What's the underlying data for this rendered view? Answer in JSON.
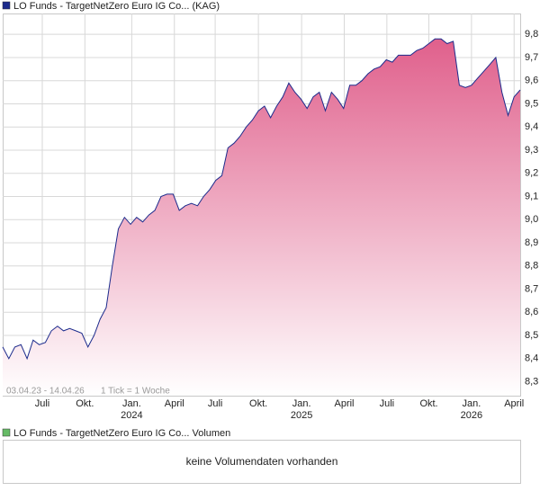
{
  "chart_data": {
    "type": "area-line",
    "legend": "LO Funds - TargetNetZero Euro IG Co... (KAG)",
    "color": "#1c2b8c",
    "fill_color": "#e0608c",
    "range_note": "03.04.23 - 14.04.26",
    "tick_note": "1 Tick = 1 Woche",
    "values": [
      8.45,
      8.4,
      8.45,
      8.46,
      8.4,
      8.48,
      8.46,
      8.47,
      8.52,
      8.54,
      8.52,
      8.53,
      8.52,
      8.51,
      8.45,
      8.5,
      8.57,
      8.62,
      8.8,
      8.96,
      9.01,
      8.98,
      9.01,
      8.99,
      9.02,
      9.04,
      9.1,
      9.11,
      9.11,
      9.04,
      9.06,
      9.07,
      9.06,
      9.1,
      9.13,
      9.17,
      9.19,
      9.31,
      9.33,
      9.36,
      9.4,
      9.43,
      9.47,
      9.49,
      9.44,
      9.49,
      9.53,
      9.59,
      9.55,
      9.52,
      9.48,
      9.53,
      9.55,
      9.47,
      9.55,
      9.52,
      9.48,
      9.58,
      9.58,
      9.6,
      9.63,
      9.65,
      9.66,
      9.69,
      9.68,
      9.71,
      9.71,
      9.71,
      9.73,
      9.74,
      9.76,
      9.78,
      9.78,
      9.76,
      9.77,
      9.58,
      9.57,
      9.58,
      9.61,
      9.64,
      9.67,
      9.7,
      9.55,
      9.45,
      9.53,
      9.56
    ],
    "xlim": [
      0,
      85
    ],
    "xticks": [
      {
        "value": 6.5,
        "label": "Juli"
      },
      {
        "value": 13.5,
        "label": "Okt."
      },
      {
        "value": 21.2,
        "label": "Jan.",
        "year": "2024"
      },
      {
        "value": 28.2,
        "label": "April"
      },
      {
        "value": 34.9,
        "label": "Juli"
      },
      {
        "value": 42,
        "label": "Okt."
      },
      {
        "value": 49.1,
        "label": "Jan.",
        "year": "2025"
      },
      {
        "value": 56.1,
        "label": "April"
      },
      {
        "value": 63.1,
        "label": "Juli"
      },
      {
        "value": 70,
        "label": "Okt."
      },
      {
        "value": 77,
        "label": "Jan.",
        "year": "2026"
      },
      {
        "value": 84,
        "label": "April"
      }
    ],
    "ylim": [
      8.24,
      9.89
    ],
    "yticks": [
      {
        "value": 8.3,
        "label": "8,3"
      },
      {
        "value": 8.4,
        "label": "8,4"
      },
      {
        "value": 8.5,
        "label": "8,5"
      },
      {
        "value": 8.6,
        "label": "8,6"
      },
      {
        "value": 8.7,
        "label": "8,7"
      },
      {
        "value": 8.8,
        "label": "8,8"
      },
      {
        "value": 8.9,
        "label": "8,9"
      },
      {
        "value": 9.0,
        "label": "9,0"
      },
      {
        "value": 9.1,
        "label": "9,1"
      },
      {
        "value": 9.2,
        "label": "9,2"
      },
      {
        "value": 9.3,
        "label": "9,3"
      },
      {
        "value": 9.4,
        "label": "9,4"
      },
      {
        "value": 9.5,
        "label": "9,5"
      },
      {
        "value": 9.6,
        "label": "9,6"
      },
      {
        "value": 9.7,
        "label": "9,7"
      },
      {
        "value": 9.8,
        "label": "9,8"
      }
    ],
    "grid": true,
    "volume_legend": "LO Funds - TargetNetZero Euro IG Co... Volumen",
    "volume_legend_color": "#66bb66",
    "volume_message": "keine Volumendaten vorhanden"
  }
}
